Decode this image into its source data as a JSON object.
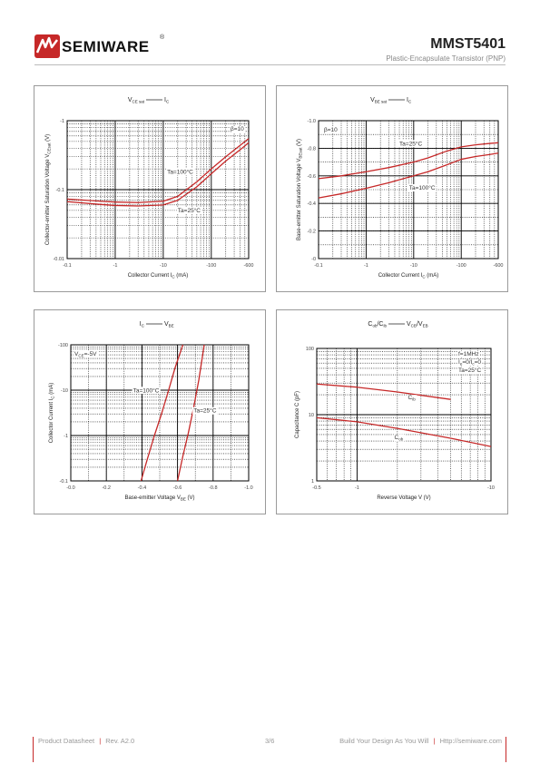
{
  "header": {
    "brand": "SEMIWARE",
    "registered": "®",
    "part_number": "MMST5401",
    "subtitle": "Plastic-Encapsulate Transistor (PNP)"
  },
  "footer": {
    "product": "Product Datasheet",
    "revision": "Rev. A2.0",
    "page": "3/6",
    "slogan": "Build Your Design As You Will",
    "url": "Http://semiware.com",
    "separator": "|"
  },
  "colors": {
    "curve": "#c62828",
    "accent": "#c62828",
    "grid": "#000000"
  },
  "chart_data": [
    {
      "type": "line",
      "title_parts": [
        "V",
        "CE sat",
        "I",
        "C"
      ],
      "xlabel": "Collector Current  I",
      "xlabel_sub": "C",
      "xlabel_unit": "(mA)",
      "ylabel": "Collector-emitter Saturation Voltage V",
      "ylabel_sub": "CEsat",
      "ylabel_unit": "(V)",
      "x_scale": "log",
      "y_scale": "log",
      "xlim": [
        0.1,
        600
      ],
      "ylim": [
        0.01,
        1
      ],
      "x_ticks": [
        0.1,
        1,
        10,
        100,
        600
      ],
      "x_tick_labels": [
        "-0.1",
        "-1",
        "-10",
        "-100",
        "-600"
      ],
      "y_ticks": [
        0.01,
        0.1,
        1
      ],
      "y_tick_labels": [
        "-0.01",
        "-0.1",
        "-1"
      ],
      "annotations": [
        "β=10",
        "Ta=100°C",
        "Ta=25°C"
      ],
      "series": [
        {
          "name": "Ta=100°C",
          "x": [
            0.1,
            0.5,
            1,
            3,
            10,
            20,
            50,
            100,
            200,
            400,
            600
          ],
          "y": [
            0.073,
            0.068,
            0.066,
            0.065,
            0.068,
            0.08,
            0.13,
            0.2,
            0.3,
            0.44,
            0.55
          ]
        },
        {
          "name": "Ta=25°C",
          "x": [
            0.1,
            0.5,
            1,
            3,
            10,
            20,
            50,
            100,
            200,
            400,
            600
          ],
          "y": [
            0.067,
            0.061,
            0.059,
            0.058,
            0.06,
            0.07,
            0.11,
            0.17,
            0.26,
            0.38,
            0.48
          ]
        }
      ]
    },
    {
      "type": "line",
      "title_parts": [
        "V",
        "BE sat",
        "I",
        "C"
      ],
      "xlabel": "Collector Current  I",
      "xlabel_sub": "C",
      "xlabel_unit": "(mA)",
      "ylabel": "Base-emitter Saturation Voltage V",
      "ylabel_sub": "BEsat",
      "ylabel_unit": "(V)",
      "x_scale": "log",
      "y_scale": "linear",
      "xlim": [
        0.1,
        600
      ],
      "ylim": [
        0,
        1.0
      ],
      "x_ticks": [
        0.1,
        1,
        10,
        100,
        600
      ],
      "x_tick_labels": [
        "-0.1",
        "-1",
        "-10",
        "-100",
        "-600"
      ],
      "y_ticks": [
        0,
        0.2,
        0.4,
        0.6,
        0.8,
        1.0
      ],
      "y_tick_labels": [
        "-0",
        "-0.2",
        "-0.4",
        "-0.6",
        "-0.8",
        "-1.0"
      ],
      "annotations": [
        "β=10",
        "Ta=25°C",
        "Ta=100°C"
      ],
      "series": [
        {
          "name": "Ta=25°C",
          "x": [
            0.1,
            0.3,
            1,
            3,
            10,
            20,
            50,
            100,
            200,
            400,
            600
          ],
          "y": [
            0.58,
            0.6,
            0.63,
            0.66,
            0.7,
            0.73,
            0.78,
            0.81,
            0.825,
            0.835,
            0.84
          ]
        },
        {
          "name": "Ta=100°C",
          "x": [
            0.1,
            0.3,
            1,
            3,
            10,
            20,
            50,
            100,
            200,
            400,
            600
          ],
          "y": [
            0.44,
            0.47,
            0.51,
            0.55,
            0.6,
            0.63,
            0.68,
            0.72,
            0.74,
            0.755,
            0.765
          ]
        }
      ]
    },
    {
      "type": "line",
      "title_parts": [
        "I",
        "C",
        "V",
        "BE"
      ],
      "xlabel": "Base-emitter Voltage  V",
      "xlabel_sub": "BE",
      "xlabel_unit": "(V)",
      "ylabel": "Collector Current I",
      "ylabel_sub": "C",
      "ylabel_unit": "(mA)",
      "x_scale": "linear",
      "y_scale": "log",
      "xlim": [
        0,
        1.0
      ],
      "ylim": [
        0.1,
        100
      ],
      "x_ticks": [
        0,
        0.2,
        0.4,
        0.6,
        0.8,
        1.0
      ],
      "x_tick_labels": [
        "-0.0",
        "-0.2",
        "-0.4",
        "-0.6",
        "-0.8",
        "-1.0"
      ],
      "y_ticks": [
        0.1,
        1,
        10,
        100
      ],
      "y_tick_labels": [
        "-0.1",
        "-1",
        "-10",
        "-100"
      ],
      "annotations": [
        "V",
        "CE",
        "=-5V",
        "Ta=100°C",
        "Ta=25°C"
      ],
      "series": [
        {
          "name": "Ta=100°C",
          "x": [
            0.395,
            0.43,
            0.47,
            0.51,
            0.55,
            0.585,
            0.63
          ],
          "y": [
            0.1,
            0.3,
            1,
            3,
            10,
            30,
            100
          ]
        },
        {
          "name": "Ta=25°C",
          "x": [
            0.6,
            0.63,
            0.66,
            0.69,
            0.72,
            0.75
          ],
          "y": [
            0.1,
            0.35,
            1.1,
            4,
            17,
            100
          ]
        }
      ]
    },
    {
      "type": "line",
      "title_parts": [
        "C",
        "ob",
        "/C",
        "ib",
        "V",
        "CB",
        "/V",
        "EB"
      ],
      "xlabel": "Reverse Voltage  V",
      "xlabel_sub": "",
      "xlabel_unit": "(V)",
      "ylabel": "Capacitance C (pF)",
      "ylabel_sub": "",
      "ylabel_unit": "",
      "x_scale": "log",
      "y_scale": "log",
      "xlim": [
        0.5,
        10
      ],
      "ylim": [
        1,
        100
      ],
      "x_ticks": [
        0.5,
        1,
        10
      ],
      "x_tick_labels": [
        "-0.5",
        "-1",
        "-10"
      ],
      "y_ticks": [
        1,
        10,
        100
      ],
      "y_tick_labels": [
        "1",
        "10",
        "100"
      ],
      "annotations": [
        "f=1MHz",
        "I",
        "e",
        "=0/I",
        "c",
        "=0",
        "Ta=25°C",
        "C",
        "ib",
        "C",
        "ob"
      ],
      "series": [
        {
          "name": "Cib",
          "x": [
            0.5,
            1,
            2,
            5
          ],
          "y": [
            29,
            26,
            22,
            17
          ]
        },
        {
          "name": "Cob",
          "x": [
            0.5,
            1,
            2,
            5,
            10
          ],
          "y": [
            9,
            7.8,
            6.2,
            4.4,
            3.3
          ]
        }
      ]
    }
  ]
}
